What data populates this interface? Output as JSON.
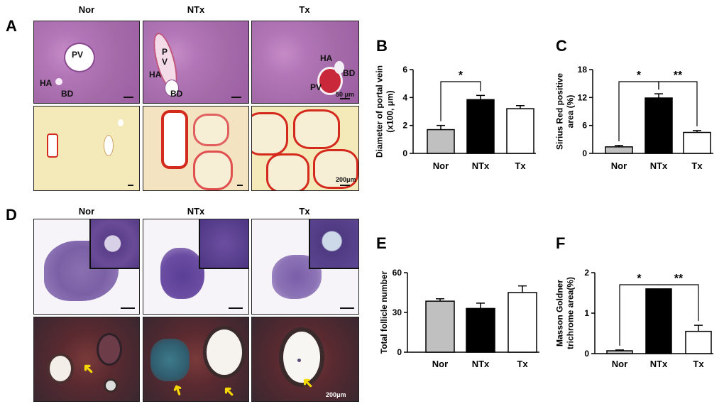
{
  "panel_labels": {
    "A": "A",
    "B": "B",
    "C": "C",
    "D": "D",
    "E": "E",
    "F": "F"
  },
  "image_panels": {
    "groups": [
      "Nor",
      "NTx",
      "Tx"
    ],
    "he_labels": {
      "nor": [
        "PV",
        "HA",
        "BD"
      ],
      "ntx": [
        "P",
        "V",
        "HA",
        "BD"
      ],
      "tx": [
        "HA",
        "BD",
        "PV"
      ]
    },
    "scale_top": "50 μm",
    "scale_bottom": "200μm",
    "scale_ovary": "200μm"
  },
  "colors": {
    "nor": "#c0c0c0",
    "ntx": "#000000",
    "tx": "#ffffff",
    "sirius_red": "#d42a1e",
    "arrow": "#f5d700"
  },
  "chart_data": [
    {
      "id": "B",
      "type": "bar",
      "categories": [
        "Nor",
        "NTx",
        "Tx"
      ],
      "values": [
        1.7,
        3.85,
        3.2
      ],
      "errors": [
        0.3,
        0.3,
        0.22
      ],
      "ylabel_lines": [
        "Diameter of portal vein",
        "(x100, μm)"
      ],
      "ylim": [
        0,
        6
      ],
      "yticks": [
        "0",
        "2",
        "4",
        "6"
      ],
      "significance": [
        {
          "from": 0,
          "to": 1,
          "label": "*"
        }
      ]
    },
    {
      "id": "C",
      "type": "bar",
      "categories": [
        "Nor",
        "NTx",
        "Tx"
      ],
      "values": [
        1.4,
        11.9,
        4.5
      ],
      "errors": [
        0.3,
        0.9,
        0.4
      ],
      "ylabel_lines": [
        "Sirius Red positive",
        "area (%)"
      ],
      "ylim": [
        0,
        18
      ],
      "yticks": [
        "0",
        "6",
        "12",
        "18"
      ],
      "significance": [
        {
          "from": 0,
          "to": 1,
          "label": "*"
        },
        {
          "from": 1,
          "to": 2,
          "label": "**"
        }
      ]
    },
    {
      "id": "E",
      "type": "bar",
      "categories": [
        "Nor",
        "NTx",
        "Tx"
      ],
      "values": [
        38.5,
        33,
        45
      ],
      "errors": [
        1.8,
        4,
        5
      ],
      "ylabel_lines": [
        "Total follicle number"
      ],
      "ylim": [
        0,
        60
      ],
      "yticks": [
        "0",
        "30",
        "60"
      ],
      "significance": []
    },
    {
      "id": "F",
      "type": "bar",
      "categories": [
        "Nor",
        "NTx",
        "Tx"
      ],
      "values": [
        0.07,
        1.6,
        0.55
      ],
      "errors": [
        0.02,
        0,
        0.15
      ],
      "ylabel_lines": [
        "Masson Goldner",
        "trichrome area(%)"
      ],
      "ylim": [
        0,
        2
      ],
      "yticks": [
        "0",
        "1",
        "2"
      ],
      "significance": [
        {
          "from": 0,
          "to": 1,
          "label": "*"
        },
        {
          "from": 1,
          "to": 2,
          "label": "**"
        }
      ]
    }
  ]
}
